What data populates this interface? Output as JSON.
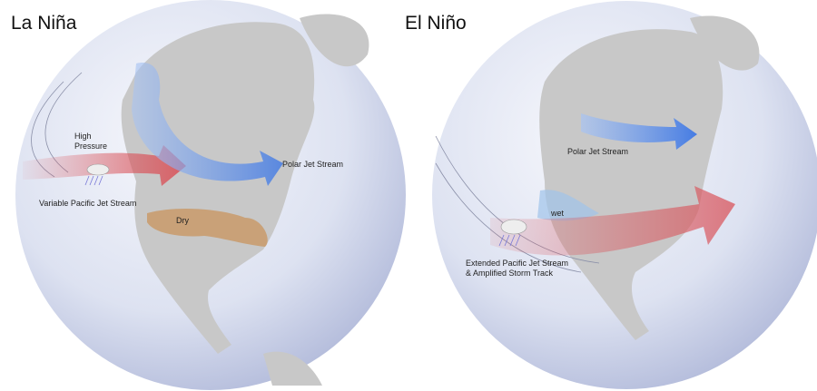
{
  "panels": [
    {
      "title": "La Niña",
      "labels": {
        "high_pressure_line1": "High",
        "high_pressure_line2": "Pressure",
        "pacific_jet": "Variable Pacific Jet Stream",
        "polar_jet": "Polar Jet Stream",
        "dry": "Dry"
      }
    },
    {
      "title": "El Niño",
      "labels": {
        "polar_jet": "Polar Jet Stream",
        "wet": "wet",
        "pacific_jet_line1": "Extended Pacific Jet Stream",
        "pacific_jet_line2": "& Amplified Storm Track"
      }
    }
  ],
  "colors": {
    "warm_jet": "#d9535a",
    "polar_jet": "#4f86e8",
    "dry_region": "#c99a6a",
    "wet_region": "#9fc3ea",
    "land": "#c8c8c8",
    "ocean": "#dfe4f2"
  }
}
